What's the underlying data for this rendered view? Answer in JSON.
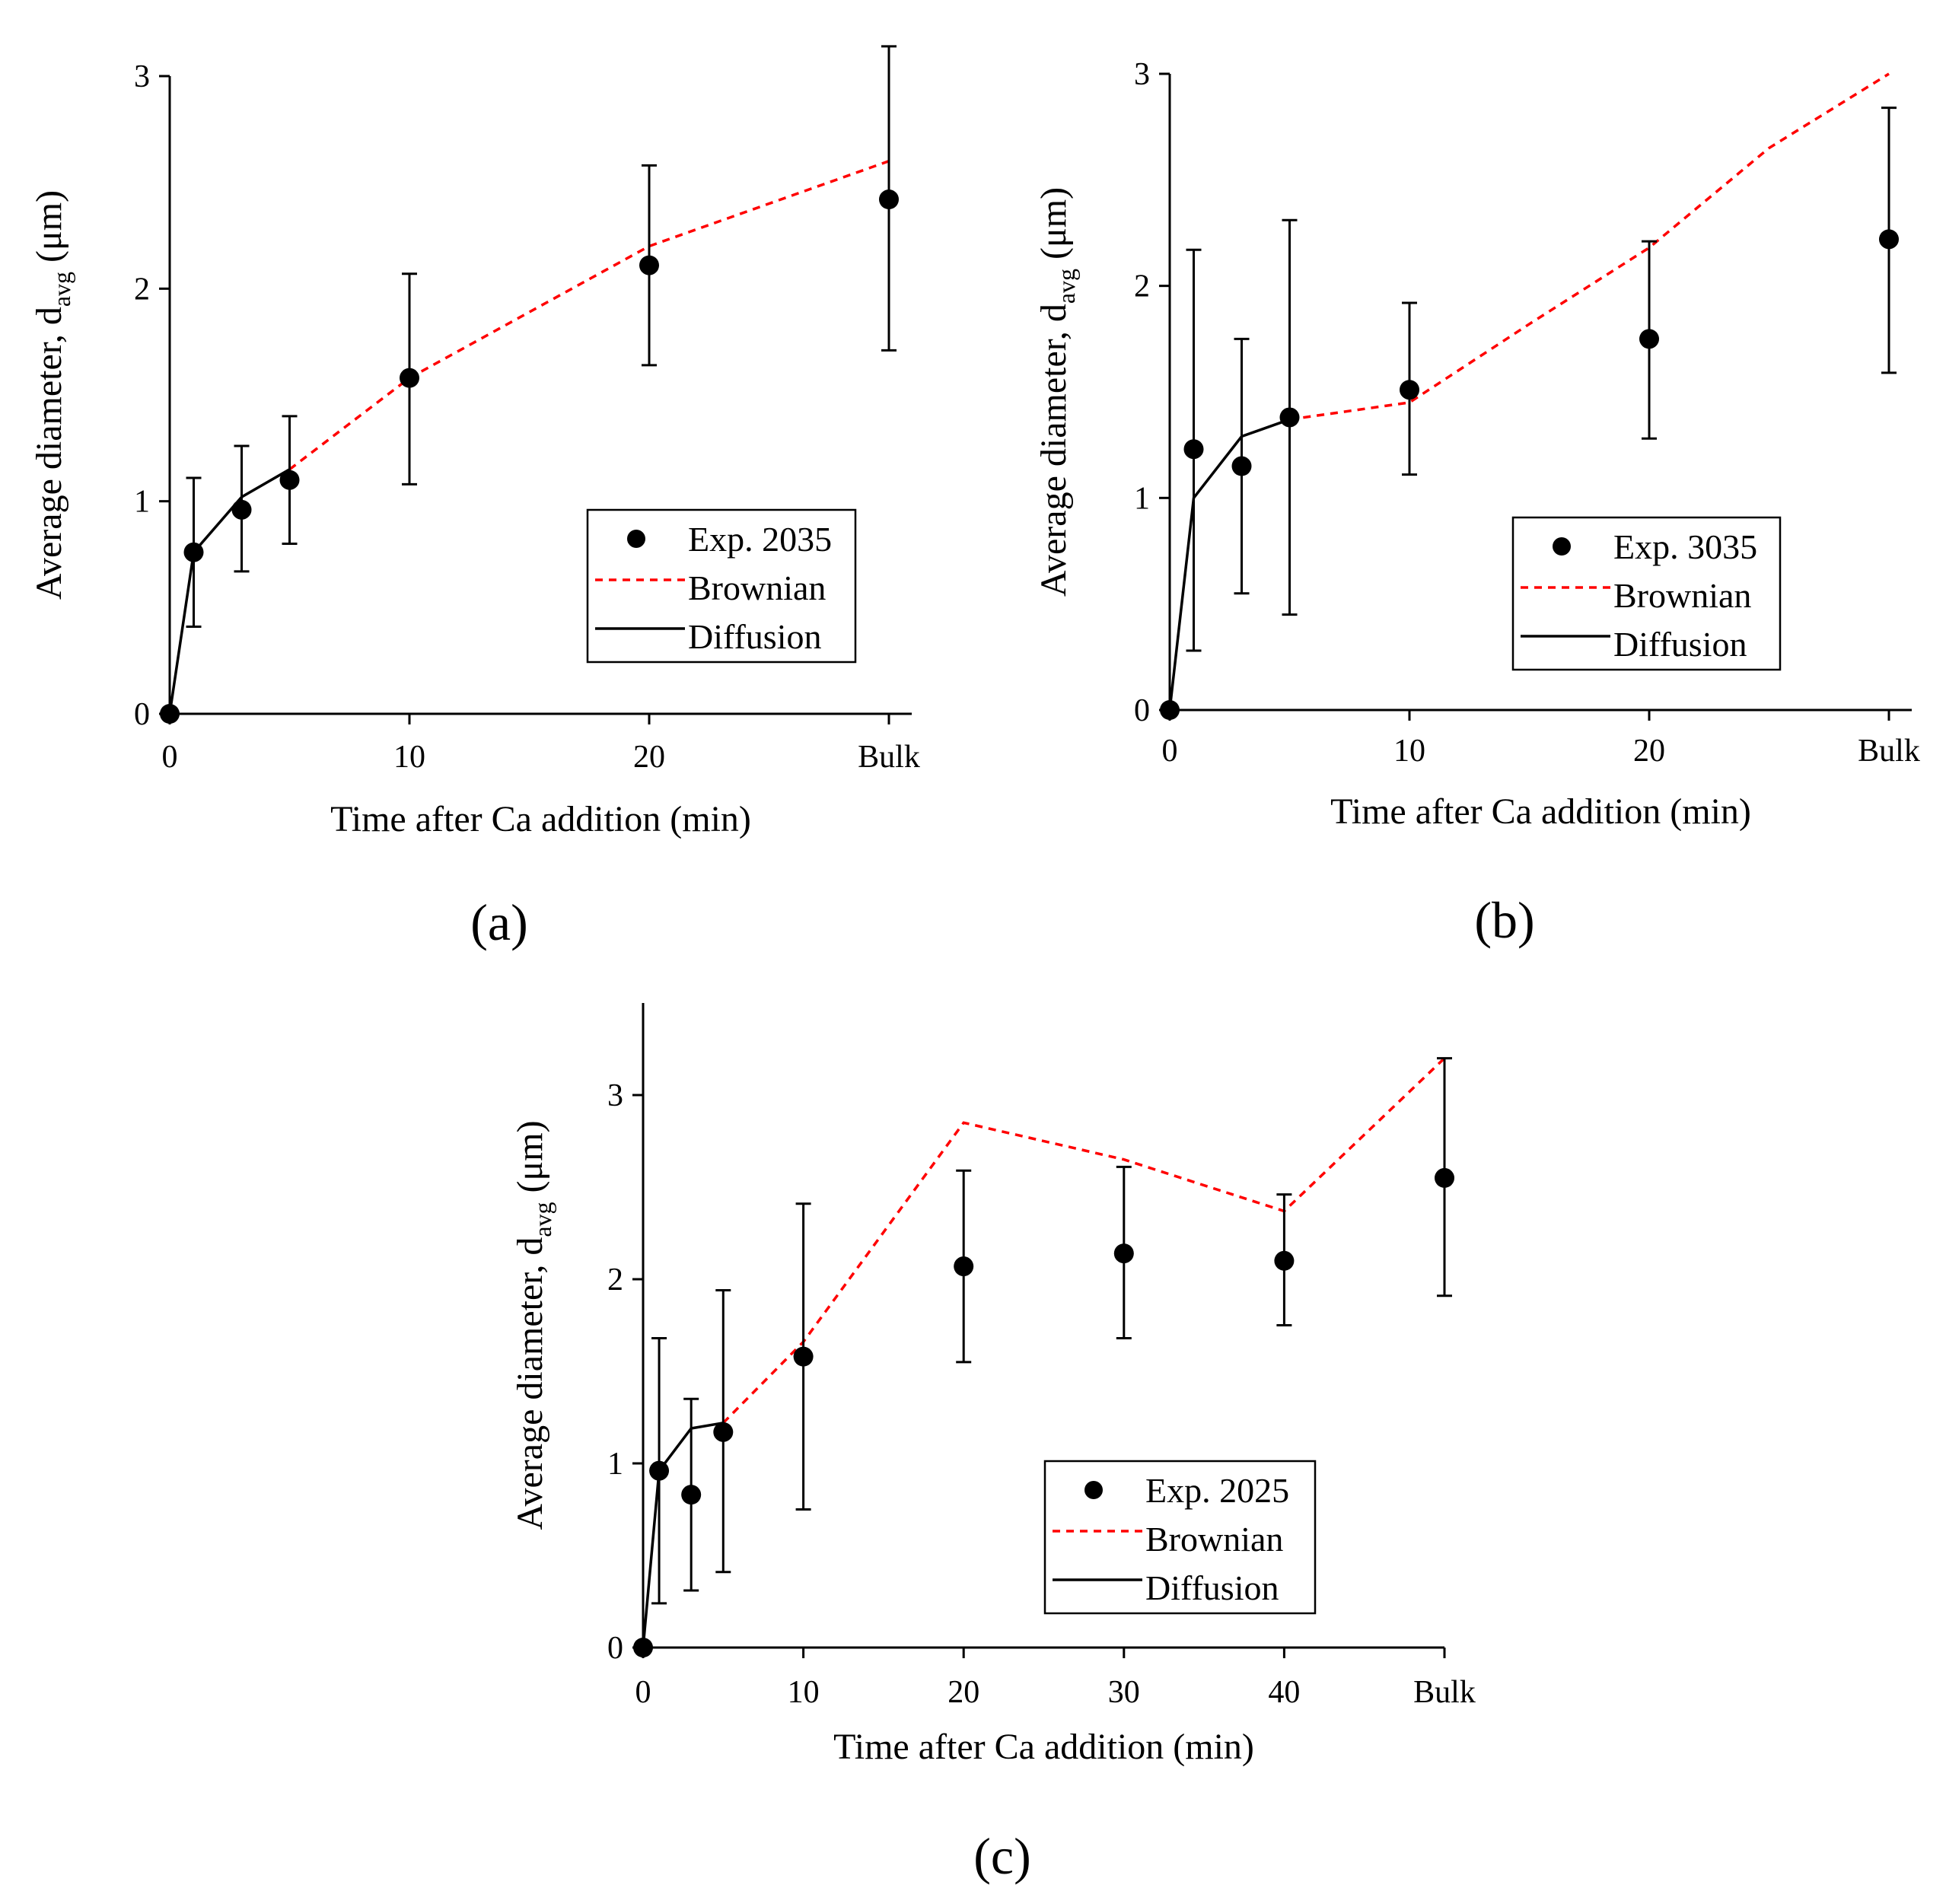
{
  "chart_data": [
    {
      "type": "scatter",
      "panel": "a",
      "panel_label": "(a)",
      "xlabel": "Time after Ca addition (min)",
      "ylabel": "Average diameter, d",
      "ylabel_sub": "avg",
      "ylabel_unit": " (μm)",
      "ylim": [
        0,
        3
      ],
      "yticks": [
        0,
        1,
        2,
        3
      ],
      "xticks": [
        0,
        10,
        20,
        30
      ],
      "xtick_labels": [
        "0",
        "10",
        "20",
        "Bulk"
      ],
      "legend_position": "lower-right",
      "series": [
        {
          "name": "Exp. 2035",
          "kind": "points",
          "x": [
            0,
            1,
            3,
            5,
            10,
            20,
            30
          ],
          "y": [
            0,
            0.76,
            0.96,
            1.1,
            1.58,
            2.11,
            2.42
          ],
          "err_low": [
            0,
            0.41,
            0.67,
            0.8,
            1.08,
            1.64,
            1.71
          ],
          "err_high": [
            0,
            1.11,
            1.26,
            1.4,
            2.07,
            2.58,
            3.14
          ]
        },
        {
          "name": "Brownian",
          "kind": "dashed",
          "color": "#ff0000",
          "x": [
            5,
            10,
            20,
            30
          ],
          "y": [
            1.15,
            1.58,
            2.2,
            2.6
          ]
        },
        {
          "name": "Diffusion",
          "kind": "solid",
          "color": "#000000",
          "x": [
            0,
            1,
            3,
            5
          ],
          "y": [
            0,
            0.76,
            1.02,
            1.15
          ]
        }
      ]
    },
    {
      "type": "scatter",
      "panel": "b",
      "panel_label": "(b)",
      "xlabel": "Time after Ca addition (min)",
      "ylabel": "Average diameter, d",
      "ylabel_sub": "avg",
      "ylabel_unit": " (μm)",
      "ylim": [
        0,
        3
      ],
      "yticks": [
        0,
        1,
        2,
        3
      ],
      "xticks": [
        0,
        10,
        20,
        30
      ],
      "xtick_labels": [
        "0",
        "10",
        "20",
        "Bulk"
      ],
      "legend_position": "lower-right",
      "series": [
        {
          "name": "Exp. 3035",
          "kind": "points",
          "x": [
            0,
            1,
            3,
            5,
            10,
            20,
            30
          ],
          "y": [
            0,
            1.23,
            1.15,
            1.38,
            1.51,
            1.75,
            2.22
          ],
          "err_low": [
            0,
            0.28,
            0.55,
            0.45,
            1.11,
            1.28,
            1.59
          ],
          "err_high": [
            0,
            2.17,
            1.75,
            2.31,
            1.92,
            2.21,
            2.84
          ]
        },
        {
          "name": "Brownian",
          "kind": "dashed",
          "color": "#ff0000",
          "x": [
            5,
            10,
            15,
            20,
            25,
            30
          ],
          "y": [
            1.37,
            1.45,
            1.82,
            2.18,
            2.65,
            3.0
          ]
        },
        {
          "name": "Diffusion",
          "kind": "solid",
          "color": "#000000",
          "x": [
            0,
            1,
            3,
            5
          ],
          "y": [
            0,
            1.0,
            1.29,
            1.37
          ]
        }
      ]
    },
    {
      "type": "scatter",
      "panel": "c",
      "panel_label": "(c)",
      "xlabel": "Time after Ca addition (min)",
      "ylabel": "Average diameter, d",
      "ylabel_sub": "avg",
      "ylabel_unit": " (μm)",
      "ylim": [
        0,
        3.5
      ],
      "yticks": [
        0,
        1,
        2,
        3
      ],
      "xticks": [
        0,
        10,
        20,
        30,
        40,
        50
      ],
      "xtick_labels": [
        "0",
        "10",
        "20",
        "30",
        "40",
        "Bulk"
      ],
      "legend_position": "lower-right",
      "series": [
        {
          "name": "Exp. 2025",
          "kind": "points",
          "x": [
            0,
            1,
            3,
            5,
            10,
            20,
            30,
            40,
            50
          ],
          "y": [
            0,
            0.96,
            0.83,
            1.17,
            1.58,
            2.07,
            2.14,
            2.1,
            2.55
          ],
          "err_low": [
            0,
            0.24,
            0.31,
            0.41,
            0.75,
            1.55,
            1.68,
            1.75,
            1.91
          ],
          "err_high": [
            0,
            1.68,
            1.35,
            1.94,
            2.41,
            2.59,
            2.61,
            2.46,
            3.2
          ]
        },
        {
          "name": "Brownian",
          "kind": "dashed",
          "color": "#ff0000",
          "x": [
            5,
            10,
            20,
            30,
            40,
            50
          ],
          "y": [
            1.22,
            1.66,
            2.85,
            2.65,
            2.37,
            3.2
          ]
        },
        {
          "name": "Diffusion",
          "kind": "solid",
          "color": "#000000",
          "x": [
            0,
            1,
            3,
            5
          ],
          "y": [
            0,
            0.96,
            1.19,
            1.22
          ]
        }
      ]
    }
  ]
}
